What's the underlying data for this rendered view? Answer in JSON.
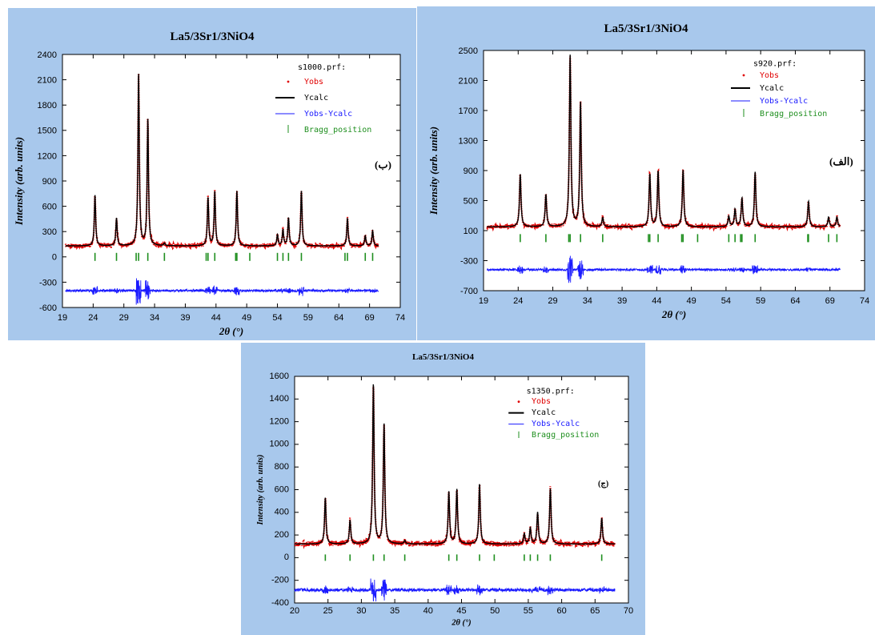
{
  "charts": [
    {
      "id": "p1",
      "title": "La5/3Sr1/3NiO4",
      "legend_title": "s1000.prf:",
      "label": "(ب)",
      "xlabel": "2θ (°)",
      "ylabel": "Intensity (arb. units)"
    },
    {
      "id": "p2",
      "title": "La5/3Sr1/3NiO4",
      "legend_title": "s920.prf:",
      "label": "(الف)",
      "xlabel": "2θ (°)",
      "ylabel": "Intensity (arb. units)"
    },
    {
      "id": "p3",
      "title": "La5/3Sr1/3NiO4",
      "legend_title": "s1350.prf:",
      "label": "(ج)",
      "xlabel": "2θ (°)",
      "ylabel": "Intensity (arb. units)"
    }
  ],
  "legend": [
    "Yobs",
    "Ycalc",
    "Yobs-Ycalc",
    "Bragg_position"
  ],
  "colors": {
    "yobs": "#e00000",
    "ycalc": "#000000",
    "diff": "#1a1aff",
    "bragg": "#1f8f1f",
    "panel": "#a8c8ec"
  },
  "chart_data": [
    {
      "type": "line",
      "title": "La5/3Sr1/3NiO4",
      "xlabel": "2θ (°)",
      "ylabel": "Intensity (arb. units)",
      "xlim": [
        19,
        74
      ],
      "ylim": [
        -600,
        2400
      ],
      "xticks": [
        19,
        24,
        29,
        34,
        39,
        44,
        49,
        54,
        59,
        64,
        69,
        74
      ],
      "yticks": [
        -600,
        -300,
        0,
        300,
        600,
        900,
        1200,
        1500,
        1800,
        2100,
        2400
      ],
      "baseline": 130,
      "diff_offset": -400,
      "x_range": [
        19.5,
        70.5
      ],
      "bragg_y": 0,
      "peaks": [
        [
          24.3,
          600
        ],
        [
          27.8,
          330
        ],
        [
          31.4,
          2040
        ],
        [
          32.9,
          1500
        ],
        [
          35.6,
          30
        ],
        [
          42.7,
          570
        ],
        [
          43.8,
          640
        ],
        [
          47.4,
          650
        ],
        [
          54.0,
          130
        ],
        [
          54.9,
          190
        ],
        [
          55.8,
          330
        ],
        [
          57.9,
          650
        ],
        [
          65.4,
          330
        ],
        [
          68.3,
          120
        ],
        [
          69.5,
          180
        ]
      ],
      "bragg": [
        24.3,
        27.8,
        31.0,
        31.4,
        32.9,
        35.6,
        42.4,
        42.7,
        43.8,
        47.2,
        47.4,
        49.5,
        54.0,
        54.9,
        55.8,
        57.9,
        65.0,
        65.4,
        68.3,
        69.5
      ],
      "series": [
        {
          "name": "Yobs"
        },
        {
          "name": "Ycalc"
        },
        {
          "name": "Yobs-Ycalc"
        },
        {
          "name": "Bragg_position"
        }
      ]
    },
    {
      "type": "line",
      "title": "La5/3Sr1/3NiO4",
      "xlabel": "2θ (°)",
      "ylabel": "Intensity (arb. units)",
      "xlim": [
        19,
        74
      ],
      "ylim": [
        -700,
        2500
      ],
      "xticks": [
        19,
        24,
        29,
        34,
        39,
        44,
        49,
        54,
        59,
        64,
        69,
        74
      ],
      "yticks": [
        -700,
        -300,
        100,
        500,
        900,
        1300,
        1700,
        2100,
        2500
      ],
      "baseline": 150,
      "diff_offset": -420,
      "x_range": [
        19.5,
        70.5
      ],
      "bragg_y": 0,
      "peaks": [
        [
          24.3,
          700
        ],
        [
          28.0,
          430
        ],
        [
          31.5,
          2280
        ],
        [
          33.0,
          1650
        ],
        [
          36.2,
          120
        ],
        [
          43.0,
          700
        ],
        [
          44.2,
          740
        ],
        [
          47.8,
          760
        ],
        [
          54.4,
          140
        ],
        [
          55.3,
          230
        ],
        [
          56.3,
          380
        ],
        [
          58.2,
          730
        ],
        [
          65.9,
          340
        ],
        [
          68.8,
          130
        ],
        [
          70.0,
          130
        ]
      ],
      "bragg": [
        24.3,
        28.0,
        31.3,
        31.5,
        33.0,
        36.2,
        42.8,
        43.0,
        44.2,
        47.6,
        47.8,
        49.9,
        54.4,
        55.3,
        56.1,
        56.3,
        58.2,
        65.8,
        65.9,
        68.8,
        70.0
      ],
      "series": [
        {
          "name": "Yobs"
        },
        {
          "name": "Ycalc"
        },
        {
          "name": "Yobs-Ycalc"
        },
        {
          "name": "Bragg_position"
        }
      ]
    },
    {
      "type": "line",
      "title": "La5/3Sr1/3NiO4",
      "xlabel": "2θ (°)",
      "ylabel": "Intensity (arb. units)",
      "xlim": [
        20,
        70
      ],
      "ylim": [
        -400,
        1600
      ],
      "xticks": [
        20,
        25,
        30,
        35,
        40,
        45,
        50,
        55,
        60,
        65,
        70
      ],
      "yticks": [
        -400,
        -200,
        0,
        200,
        400,
        600,
        800,
        1000,
        1200,
        1400,
        1600
      ],
      "baseline": 120,
      "diff_offset": -285,
      "x_range": [
        20.0,
        68.0
      ],
      "bragg_y": 0,
      "peaks": [
        [
          24.6,
          410
        ],
        [
          28.3,
          210
        ],
        [
          31.8,
          1410
        ],
        [
          33.4,
          1060
        ],
        [
          36.5,
          30
        ],
        [
          43.1,
          460
        ],
        [
          44.3,
          480
        ],
        [
          47.7,
          530
        ],
        [
          54.4,
          90
        ],
        [
          55.3,
          140
        ],
        [
          56.4,
          280
        ],
        [
          58.3,
          490
        ],
        [
          66.0,
          230
        ]
      ],
      "bragg": [
        24.6,
        28.3,
        31.8,
        33.4,
        36.5,
        43.1,
        44.3,
        47.7,
        49.9,
        54.4,
        55.3,
        56.4,
        58.3,
        66.0
      ],
      "series": [
        {
          "name": "Yobs"
        },
        {
          "name": "Ycalc"
        },
        {
          "name": "Yobs-Ycalc"
        },
        {
          "name": "Bragg_position"
        }
      ]
    }
  ]
}
